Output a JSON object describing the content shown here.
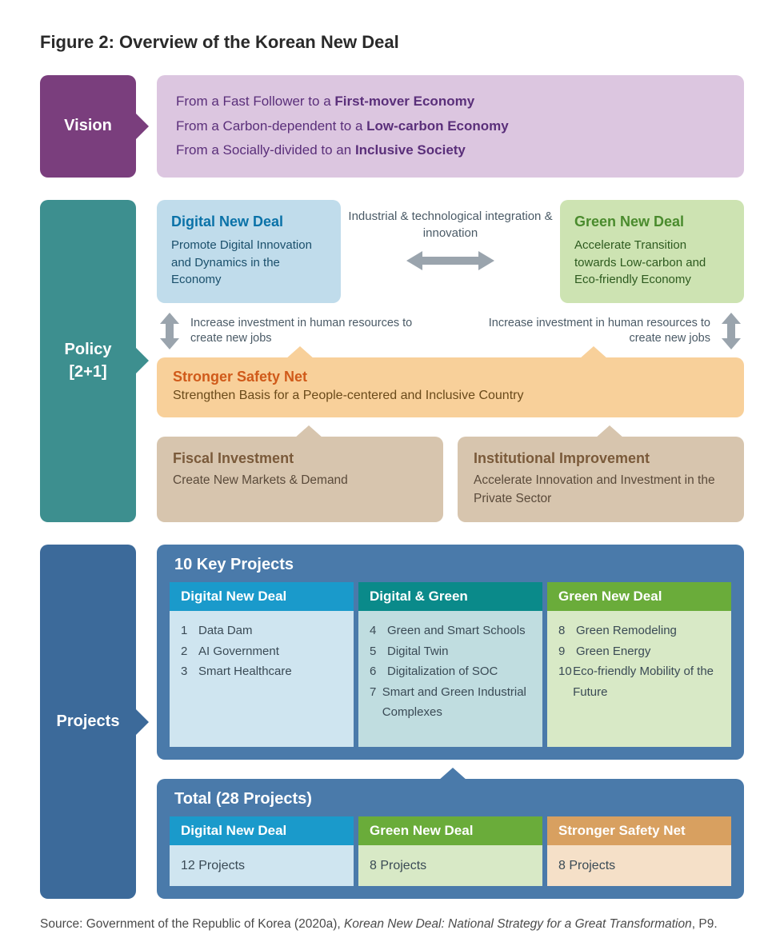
{
  "figure_title": "Figure 2: Overview of the Korean New Deal",
  "colors": {
    "vision_label": "#7a3e7d",
    "vision_box_bg": "#dcc6e0",
    "vision_text": "#5a2f7a",
    "policy_label": "#3d8f8f",
    "digital_box_bg": "#c0dceb",
    "digital_title": "#0a72a8",
    "green_box_bg": "#cde3b2",
    "green_title": "#4a8b2d",
    "safety_bg": "#f8d09a",
    "safety_title": "#d05a1a",
    "fiscal_bg": "#d7c5ae",
    "fiscal_title": "#7a5a3a",
    "projects_label": "#3c6a9a",
    "projects_outer": "#4a7aaa",
    "hdr_blue": "#1a9acb",
    "hdr_teal": "#0a8a8a",
    "hdr_green": "#6aac3a",
    "hdr_orange": "#d8a060",
    "body_lblue": "#cfe5f0",
    "body_lteal": "#c0dde0",
    "body_lgreen": "#d8e9c6",
    "body_lorange": "#f5e0c8",
    "arrow_gray": "#9aa4ad"
  },
  "vision": {
    "label": "Vision",
    "lines": [
      {
        "prefix": "From a Fast Follower to a ",
        "bold": "First-mover Economy"
      },
      {
        "prefix": "From a Carbon-dependent to a ",
        "bold": "Low-carbon Economy"
      },
      {
        "prefix": "From a Socially-divided to an ",
        "bold": "Inclusive Society"
      }
    ]
  },
  "policy": {
    "label": "Policy\n[2+1]",
    "digital": {
      "title": "Digital New Deal",
      "desc": "Promote Digital Innovation and Dynamics in the Economy"
    },
    "green": {
      "title": "Green New Deal",
      "desc": "Accelerate Transition towards Low-carbon and Eco-friendly Economy"
    },
    "mid_text": "Industrial & technological integration & innovation",
    "invest_note_left": "Increase investment in human resources to create new jobs",
    "invest_note_right": "Increase investment in human resources to create new jobs",
    "safety": {
      "title": "Stronger Safety Net",
      "desc": "Strengthen Basis for a People-centered and Inclusive Country"
    },
    "fiscal": {
      "title": "Fiscal Investment",
      "desc": "Create New Markets & Demand"
    },
    "institutional": {
      "title": "Institutional Improvement",
      "desc": "Accelerate Innovation and Investment in the Private Sector"
    }
  },
  "projects": {
    "label": "Projects",
    "key_heading": "10 Key Projects",
    "columns": [
      {
        "header": "Digital New Deal",
        "header_color": "hdr-blue",
        "body_color": "body-lblue",
        "items": [
          {
            "n": "1",
            "t": "Data Dam"
          },
          {
            "n": "2",
            "t": "AI Government"
          },
          {
            "n": "3",
            "t": "Smart Healthcare"
          }
        ]
      },
      {
        "header": "Digital & Green",
        "header_color": "hdr-teal",
        "body_color": "body-lteal",
        "items": [
          {
            "n": "4",
            "t": "Green and Smart Schools"
          },
          {
            "n": "5",
            "t": "Digital Twin"
          },
          {
            "n": "6",
            "t": "Digitalization of SOC"
          },
          {
            "n": "7",
            "t": "Smart and Green Industrial Complexes"
          }
        ]
      },
      {
        "header": "Green New Deal",
        "header_color": "hdr-green",
        "body_color": "body-lgreen",
        "items": [
          {
            "n": "8",
            "t": "Green Remodeling"
          },
          {
            "n": "9",
            "t": "Green Energy"
          },
          {
            "n": "10",
            "t": "Eco-friendly Mobility of the Future"
          }
        ]
      }
    ],
    "total_heading": "Total (28 Projects)",
    "total_columns": [
      {
        "header": "Digital New Deal",
        "header_color": "hdr-blue",
        "body_color": "body-lblue",
        "value": "12 Projects"
      },
      {
        "header": "Green New Deal",
        "header_color": "hdr-green",
        "body_color": "body-lgreen",
        "value": "8 Projects"
      },
      {
        "header": "Stronger Safety Net",
        "header_color": "hdr-orange",
        "body_color": "body-lorange",
        "value": "8 Projects"
      }
    ]
  },
  "source": {
    "prefix": "Source: Government of the Republic of Korea (2020a), ",
    "italic": "Korean New Deal: National Strategy for a Great Transformation",
    "suffix": ", P9."
  }
}
